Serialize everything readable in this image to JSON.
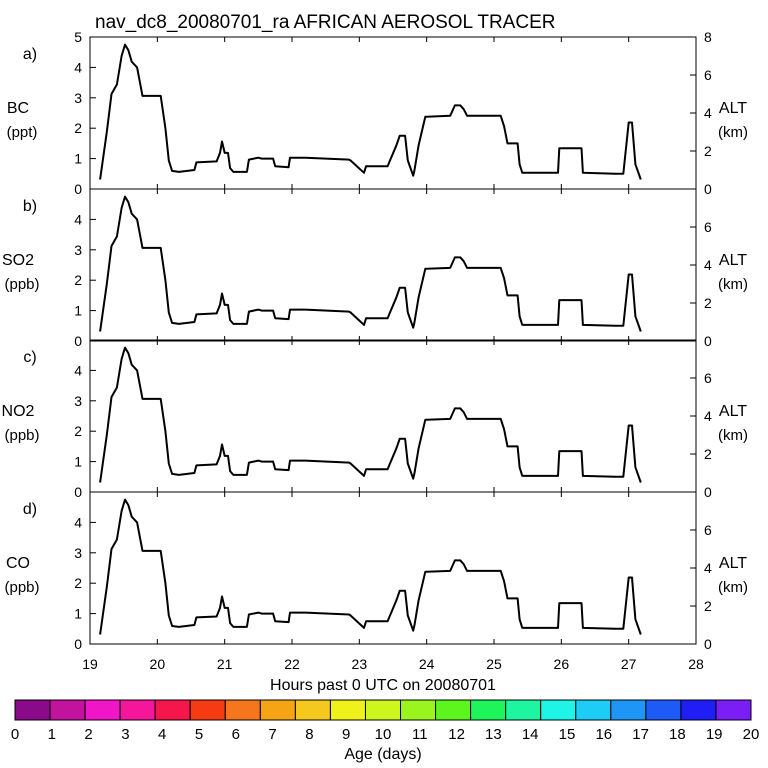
{
  "title": "nav_dc8_20080701_ra AFRICAN AEROSOL TRACER",
  "chart_data": [
    {
      "type": "line",
      "panel_tag": "a)",
      "ylabel": "BC",
      "yunit": "(ppt)",
      "y2label": "ALT",
      "y2unit": "(km)",
      "ylim": [
        0,
        5
      ],
      "yticks": [
        0,
        1,
        2,
        3,
        4,
        5
      ],
      "y2lim": [
        0,
        8
      ],
      "y2ticks": [
        0,
        2,
        4,
        6,
        8
      ]
    },
    {
      "type": "line",
      "panel_tag": "b)",
      "ylabel": "SO2",
      "yunit": "(ppb)",
      "y2label": "ALT",
      "y2unit": "(km)",
      "ylim": [
        0,
        5
      ],
      "yticks": [
        0,
        1,
        2,
        3,
        4
      ],
      "y2lim": [
        0,
        8
      ],
      "y2ticks": [
        0,
        2,
        4,
        6
      ]
    },
    {
      "type": "line",
      "panel_tag": "c)",
      "ylabel": "NO2",
      "yunit": "(ppb)",
      "y2label": "ALT",
      "y2unit": "(km)",
      "ylim": [
        0,
        5
      ],
      "yticks": [
        0,
        1,
        2,
        3,
        4
      ],
      "y2lim": [
        0,
        8
      ],
      "y2ticks": [
        0,
        2,
        4,
        6
      ]
    },
    {
      "type": "line",
      "panel_tag": "d)",
      "ylabel": "CO",
      "yunit": "(ppb)",
      "y2label": "ALT",
      "y2unit": "(km)",
      "ylim": [
        0,
        5
      ],
      "yticks": [
        0,
        1,
        2,
        3,
        4
      ],
      "y2lim": [
        0,
        8
      ],
      "y2ticks": [
        0,
        2,
        4,
        6
      ]
    }
  ],
  "shared_x": {
    "xlabel": "Hours past 0 UTC on 20080701",
    "xlim": [
      19,
      28
    ],
    "xticks": [
      19,
      20,
      21,
      22,
      23,
      24,
      25,
      26,
      27,
      28
    ]
  },
  "altitude_series": {
    "name": "ALT",
    "x": [
      19.15,
      19.25,
      19.32,
      19.4,
      19.47,
      19.52,
      19.57,
      19.62,
      19.7,
      19.78,
      19.9,
      20.05,
      20.12,
      20.17,
      20.22,
      20.32,
      20.55,
      20.58,
      20.88,
      20.93,
      20.96,
      21.0,
      21.05,
      21.08,
      21.13,
      21.33,
      21.36,
      21.5,
      21.55,
      21.72,
      21.75,
      21.95,
      21.97,
      22.2,
      22.85,
      22.87,
      23.07,
      23.1,
      23.42,
      23.45,
      23.55,
      23.6,
      23.68,
      23.72,
      23.8,
      23.82,
      23.88,
      23.98,
      24.0,
      24.35,
      24.42,
      24.5,
      24.55,
      24.6,
      24.8,
      25.1,
      25.15,
      25.2,
      25.35,
      25.38,
      25.42,
      25.45,
      25.95,
      25.97,
      26.3,
      26.32,
      26.8,
      26.92,
      27.0,
      27.05,
      27.1,
      27.18
    ],
    "y": [
      0.5,
      3.0,
      5.0,
      5.5,
      7.0,
      7.6,
      7.3,
      6.7,
      6.4,
      4.9,
      4.9,
      4.9,
      3.2,
      1.5,
      0.95,
      0.9,
      1.0,
      1.4,
      1.45,
      1.9,
      2.5,
      1.9,
      1.9,
      1.1,
      0.9,
      0.9,
      1.55,
      1.65,
      1.6,
      1.6,
      1.2,
      1.15,
      1.65,
      1.65,
      1.55,
      1.5,
      0.85,
      1.2,
      1.2,
      1.45,
      2.3,
      2.8,
      2.8,
      1.5,
      0.7,
      1.0,
      2.3,
      3.8,
      3.8,
      3.85,
      4.4,
      4.4,
      4.2,
      3.85,
      3.85,
      3.85,
      3.3,
      2.4,
      2.4,
      1.3,
      0.85,
      0.85,
      0.85,
      2.15,
      2.15,
      0.85,
      0.8,
      0.8,
      3.5,
      3.5,
      1.3,
      0.5
    ]
  },
  "colorbar": {
    "label": "Age (days)",
    "tick_labels": [
      "0",
      "1",
      "2",
      "3",
      "4",
      "5",
      "6",
      "7",
      "8",
      "9",
      "10",
      "11",
      "12",
      "13",
      "14",
      "15",
      "16",
      "17",
      "18",
      "19",
      "20"
    ],
    "colors": [
      "#8a0a8a",
      "#c2139f",
      "#f015c8",
      "#f5169b",
      "#f5164b",
      "#f53a14",
      "#f5761c",
      "#f5a414",
      "#f5c81e",
      "#f0f01a",
      "#cdf51e",
      "#9af51e",
      "#5cf51e",
      "#1ef55a",
      "#1ef5a0",
      "#1ef5e6",
      "#1ecdf5",
      "#1e96f5",
      "#1e5af5",
      "#1e1ef5",
      "#7a1ef5"
    ]
  }
}
